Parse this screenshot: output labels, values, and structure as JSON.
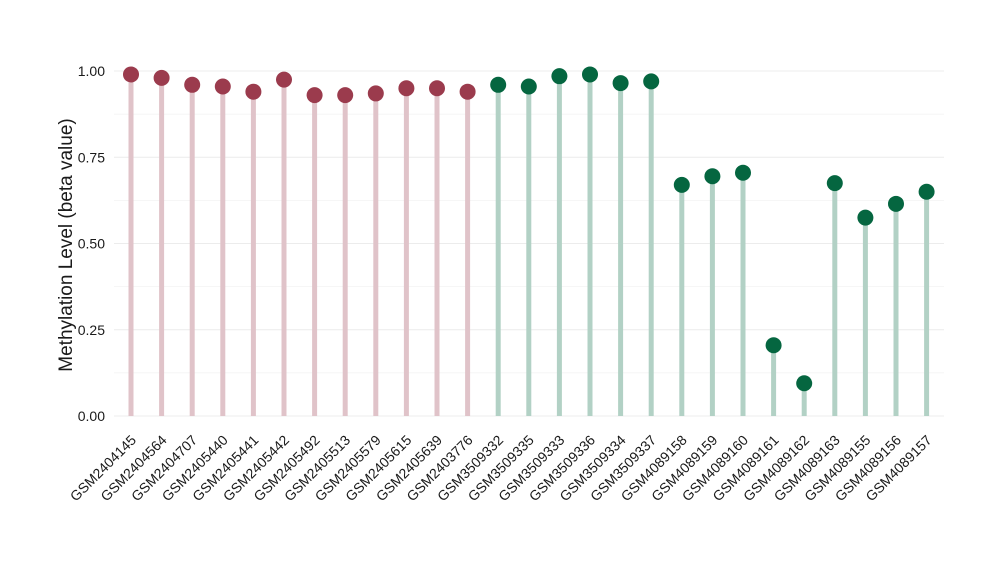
{
  "chart_data": {
    "type": "lollipop",
    "ylabel": "Methylation Level (beta value)",
    "ylim": [
      0,
      1
    ],
    "y_ticks": [
      "0.00",
      "0.25",
      "0.50",
      "0.75",
      "1.00"
    ],
    "y_tick_values": [
      0,
      0.25,
      0.5,
      0.75,
      1.0
    ],
    "grid": true,
    "categories": [
      "GSM2404145",
      "GSM2404564",
      "GSM2404707",
      "GSM2405440",
      "GSM2405441",
      "GSM2405442",
      "GSM2405492",
      "GSM2405513",
      "GSM2405579",
      "GSM2405615",
      "GSM2405639",
      "GSM2403776",
      "GSM3509332",
      "GSM3509335",
      "GSM3509333",
      "GSM3509336",
      "GSM3509334",
      "GSM3509337",
      "GSM4089158",
      "GSM4089159",
      "GSM4089160",
      "GSM4089161",
      "GSM4089162",
      "GSM4089163",
      "GSM4089155",
      "GSM4089156",
      "GSM4089157"
    ],
    "values": [
      0.99,
      0.98,
      0.96,
      0.955,
      0.94,
      0.975,
      0.93,
      0.93,
      0.935,
      0.95,
      0.95,
      0.94,
      0.96,
      0.955,
      0.985,
      0.99,
      0.965,
      0.97,
      0.67,
      0.695,
      0.705,
      0.205,
      0.095,
      0.675,
      0.575,
      0.615,
      0.65
    ],
    "groups": [
      "a",
      "a",
      "a",
      "a",
      "a",
      "a",
      "a",
      "a",
      "a",
      "a",
      "a",
      "a",
      "b",
      "b",
      "b",
      "b",
      "b",
      "b",
      "b",
      "b",
      "b",
      "b",
      "b",
      "b",
      "b",
      "b",
      "b"
    ],
    "colors": {
      "a_point": "#9b3b4d",
      "a_stem": "#e0c3c9",
      "b_point": "#056640",
      "b_stem": "#b2d1c5",
      "grid": "#ececec"
    }
  }
}
